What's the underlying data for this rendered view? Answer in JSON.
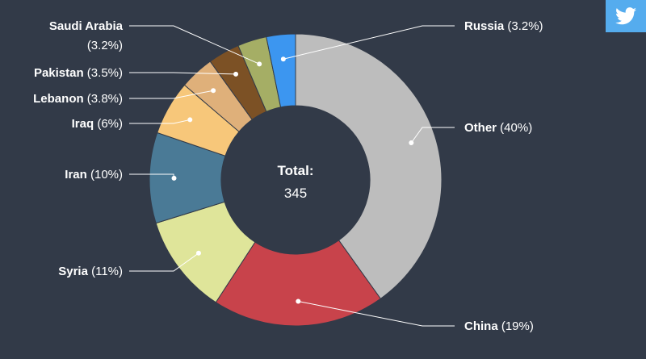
{
  "chart_data": {
    "type": "pie",
    "variant": "donut",
    "title": "",
    "center_label": "Total:",
    "center_value": "345",
    "slices": [
      {
        "name": "Other",
        "value": 40,
        "label": "(40%)",
        "color": "#bdbdbd"
      },
      {
        "name": "China",
        "value": 19,
        "label": "(19%)",
        "color": "#c8434b"
      },
      {
        "name": "Syria",
        "value": 11,
        "label": "(11%)",
        "color": "#dfe59a"
      },
      {
        "name": "Iran",
        "value": 10,
        "label": "(10%)",
        "color": "#4a7a96"
      },
      {
        "name": "Iraq",
        "value": 6,
        "label": "(6%)",
        "color": "#f7c77a"
      },
      {
        "name": "Lebanon",
        "value": 3.8,
        "label": "(3.8%)",
        "color": "#dfb07a"
      },
      {
        "name": "Pakistan",
        "value": 3.5,
        "label": "(3.5%)",
        "color": "#7c5125"
      },
      {
        "name": "Saudi Arabia",
        "value": 3.2,
        "label": "(3.2%)",
        "color": "#a5ae65"
      },
      {
        "name": "Russia",
        "value": 3.2,
        "label": "(3.2%)",
        "color": "#3c96f0"
      }
    ]
  },
  "share": {
    "icon": "twitter-icon",
    "color": "#55acee"
  }
}
